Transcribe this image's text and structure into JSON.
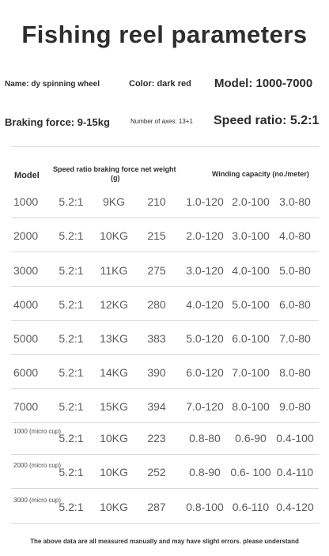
{
  "title": "Fishing reel parameters",
  "specs": {
    "name": "Name: dy spinning wheel",
    "color": "Color: dark red",
    "model": "Model: 1000-7000",
    "braking": "Braking force: 9-15kg",
    "axes": "Number of axes: 13+1",
    "ratio": "Speed ratio: 5.2:1"
  },
  "table": {
    "headers": {
      "model": "Model",
      "middle": "Speed ratio braking force net weight",
      "weight_unit": "(g)",
      "winding": "Winding capacity (no./meter)"
    },
    "rows": [
      {
        "model": "1000",
        "ratio": "5.2:1",
        "brake": "9KG",
        "weight": "210",
        "w1": "1.0-120",
        "w2": "2.0-100",
        "w3": "3.0-80"
      },
      {
        "model": "2000",
        "ratio": "5.2:1",
        "brake": "10KG",
        "weight": "215",
        "w1": "2.0-120",
        "w2": "3.0-100",
        "w3": "4.0-80"
      },
      {
        "model": "3000",
        "ratio": "5.2:1",
        "brake": "11KG",
        "weight": "275",
        "w1": "3.0-120",
        "w2": "4.0-100",
        "w3": "5.0-80"
      },
      {
        "model": "4000",
        "ratio": "5.2:1",
        "brake": "12KG",
        "weight": "280",
        "w1": "4.0-120",
        "w2": "5.0-100",
        "w3": "6.0-80"
      },
      {
        "model": "5000",
        "ratio": "5.2:1",
        "brake": "13KG",
        "weight": "383",
        "w1": "5.0-120",
        "w2": "6.0-100",
        "w3": "7.0-80"
      },
      {
        "model": "6000",
        "ratio": "5.2:1",
        "brake": "14KG",
        "weight": "390",
        "w1": "6.0-120",
        "w2": "7.0-100",
        "w3": "8.0-80"
      },
      {
        "model": "7000",
        "ratio": "5.2:1",
        "brake": "15KG",
        "weight": "394",
        "w1": "7.0-120",
        "w2": "8.0-100",
        "w3": "9.0-80"
      },
      {
        "model": "1000 (micro cup)",
        "ratio": "5.2:1",
        "brake": "10KG",
        "weight": "223",
        "w1": "0.8-80",
        "w2": "0.6-90",
        "w3": "0.4-100"
      },
      {
        "model": "2000 (micro cup)",
        "ratio": "5.2:1",
        "brake": "10KG",
        "weight": "252",
        "w1": "0.8-90",
        "w2": "0.6- 100",
        "w3": "0.4-110"
      },
      {
        "model": "3000 (micro cup)",
        "ratio": "5.2:1",
        "brake": "10KG",
        "weight": "287",
        "w1": "0.8-100",
        "w2": "0.6-110",
        "w3": "0.4-120"
      }
    ]
  },
  "note": "The above data are all measured manually and may have slight errors. please understand"
}
